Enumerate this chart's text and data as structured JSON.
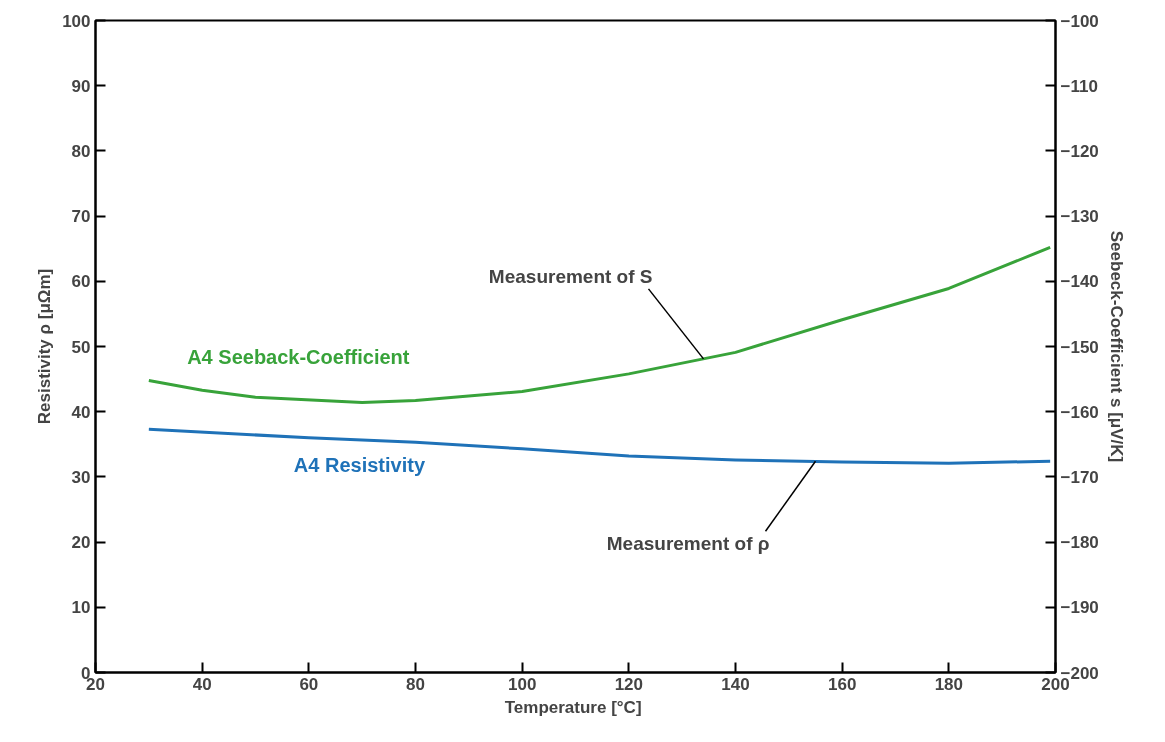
{
  "chart_data": {
    "type": "line",
    "xlabel": "Temperature  [°C]",
    "ylabel": "Resistivity ρ [μΩm]",
    "y2label": "Seebeck-Coefficient s [μV/K]",
    "xlim": [
      20,
      200
    ],
    "xticks": [
      20,
      40,
      60,
      80,
      100,
      120,
      140,
      160,
      180,
      200
    ],
    "ylim": [
      0,
      100
    ],
    "yticks": [
      0,
      10,
      20,
      30,
      40,
      50,
      60,
      70,
      80,
      90,
      100
    ],
    "y2lim": [
      -200,
      -100
    ],
    "y2ticks": [
      -200,
      -190,
      -180,
      -170,
      -160,
      -150,
      -140,
      -130,
      -120,
      -110,
      -100
    ],
    "grid": false,
    "marker": "none",
    "line_style": "solid",
    "series": [
      {
        "name": "A4 Resistivity",
        "color": "#1f72b8",
        "x": [
          30,
          60,
          80,
          100,
          120,
          140,
          160,
          180,
          199
        ],
        "values": [
          37.3,
          36.0,
          35.3,
          34.3,
          33.2,
          32.6,
          32.3,
          32.1,
          32.4
        ]
      },
      {
        "name": "A4 Seeback-Coefficient",
        "color": "#38a33a",
        "axis": "y2",
        "x": [
          30,
          40,
          50,
          70,
          80,
          100,
          120,
          140,
          160,
          180,
          199
        ],
        "values": [
          -155.2,
          -156.7,
          -157.8,
          -158.6,
          -158.3,
          -156.9,
          -154.2,
          -150.9,
          -145.9,
          -141.1,
          -134.8
        ]
      }
    ],
    "annotations": [
      {
        "text": "Measurement of S",
        "x": 134,
        "y": 48.1
      },
      {
        "text": "Measurement of ρ",
        "x": 155,
        "y": 32.4
      }
    ]
  }
}
